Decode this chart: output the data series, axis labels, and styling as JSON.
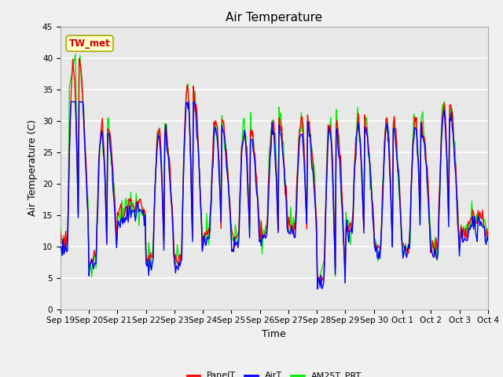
{
  "title": "Air Temperature",
  "ylabel": "Air Temperature (C)",
  "xlabel": "Time",
  "ylim": [
    0,
    45
  ],
  "annotation_text": "TW_met",
  "annotation_color": "#cc0000",
  "annotation_bg": "#ffffcc",
  "annotation_border": "#aaa800",
  "x_tick_labels": [
    "Sep 19",
    "Sep 20",
    "Sep 21",
    "Sep 22",
    "Sep 23",
    "Sep 24",
    "Sep 25",
    "Sep 26",
    "Sep 27",
    "Sep 28",
    "Sep 29",
    "Sep 30",
    "Oct 1",
    "Oct 2",
    "Oct 3",
    "Oct 4"
  ],
  "legend_labels": [
    "PanelT",
    "AirT",
    "AM25T_PRT"
  ],
  "legend_colors": [
    "#ff0000",
    "#0000ff",
    "#00ee00"
  ],
  "plot_bg_color": "#e8e8e8",
  "grid_color": "#ffffff",
  "line_width": 1.0,
  "title_fontsize": 11,
  "axis_fontsize": 9,
  "tick_fontsize": 7.5,
  "legend_fontsize": 8,
  "night_temps": [
    11,
    8,
    15,
    8,
    8,
    12,
    11,
    12,
    13,
    5,
    13,
    10,
    10,
    10,
    12
  ],
  "day_temps": [
    39,
    29,
    17,
    29,
    35,
    30,
    29,
    30,
    30,
    30,
    30,
    30,
    30,
    32,
    15
  ],
  "am25t_peak_day0": 41,
  "am25t_drop_day9": 3.5
}
